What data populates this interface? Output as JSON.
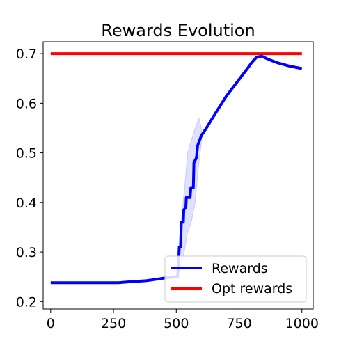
{
  "chart_data": {
    "type": "line",
    "title": "Rewards Evolution",
    "xlabel": "",
    "ylabel": "",
    "xlim": [
      -30,
      1045
    ],
    "ylim": [
      0.185,
      0.724
    ],
    "xticks": [
      0,
      250,
      500,
      750,
      1000
    ],
    "yticks": [
      0.2,
      0.3,
      0.4,
      0.5,
      0.6,
      0.7
    ],
    "xtick_labels": [
      "0",
      "250",
      "500",
      "750",
      "1000"
    ],
    "ytick_labels": [
      "0.2",
      "0.3",
      "0.4",
      "0.5",
      "0.6",
      "0.7"
    ],
    "legend_position": "lower right",
    "series": [
      {
        "name": "Rewards",
        "color": "#0000ff",
        "points": [
          [
            0,
            0.238
          ],
          [
            100,
            0.238
          ],
          [
            200,
            0.238
          ],
          [
            270,
            0.238
          ],
          [
            320,
            0.24
          ],
          [
            380,
            0.242
          ],
          [
            420,
            0.245
          ],
          [
            460,
            0.248
          ],
          [
            500,
            0.25
          ],
          [
            505,
            0.25
          ],
          [
            510,
            0.29
          ],
          [
            512,
            0.31
          ],
          [
            517,
            0.31
          ],
          [
            520,
            0.36
          ],
          [
            528,
            0.36
          ],
          [
            530,
            0.385
          ],
          [
            538,
            0.39
          ],
          [
            540,
            0.41
          ],
          [
            555,
            0.41
          ],
          [
            558,
            0.43
          ],
          [
            568,
            0.43
          ],
          [
            570,
            0.48
          ],
          [
            580,
            0.49
          ],
          [
            585,
            0.515
          ],
          [
            600,
            0.535
          ],
          [
            620,
            0.55
          ],
          [
            650,
            0.575
          ],
          [
            700,
            0.615
          ],
          [
            750,
            0.648
          ],
          [
            780,
            0.668
          ],
          [
            800,
            0.682
          ],
          [
            820,
            0.693
          ],
          [
            840,
            0.695
          ],
          [
            860,
            0.69
          ],
          [
            880,
            0.686
          ],
          [
            900,
            0.682
          ],
          [
            950,
            0.675
          ],
          [
            1000,
            0.67
          ]
        ],
        "band_upper": [
          [
            505,
            0.26
          ],
          [
            515,
            0.33
          ],
          [
            525,
            0.39
          ],
          [
            535,
            0.44
          ],
          [
            545,
            0.5
          ],
          [
            560,
            0.525
          ],
          [
            575,
            0.55
          ],
          [
            590,
            0.57
          ],
          [
            600,
            0.55
          ]
        ],
        "band_lower": [
          [
            505,
            0.25
          ],
          [
            515,
            0.26
          ],
          [
            525,
            0.28
          ],
          [
            535,
            0.31
          ],
          [
            545,
            0.34
          ],
          [
            560,
            0.36
          ],
          [
            575,
            0.4
          ],
          [
            590,
            0.48
          ],
          [
            600,
            0.52
          ]
        ]
      },
      {
        "name": "Opt rewards",
        "color": "#ff0000",
        "points": [
          [
            0,
            0.7
          ],
          [
            1000,
            0.7
          ]
        ]
      }
    ]
  }
}
